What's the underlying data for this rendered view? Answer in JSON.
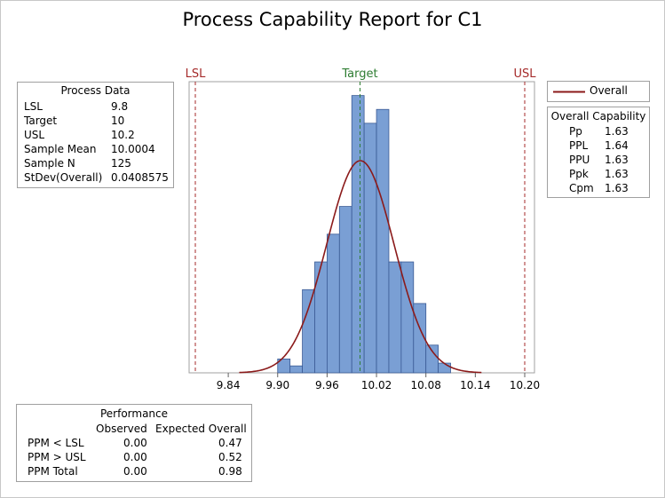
{
  "title": "Process Capability Report for C1",
  "colors": {
    "bar_fill": "#7a9fd4",
    "bar_stroke": "#3a5a94",
    "curve": "#8b1a1a",
    "spec_line": "#a52a2a",
    "target_line": "#2e7d32"
  },
  "chart_data": {
    "type": "bar",
    "title": "Process Capability Report for C1",
    "x_axis": {
      "range": [
        9.8,
        10.2
      ],
      "ticks": [
        9.84,
        9.9,
        9.96,
        10.02,
        10.08,
        10.14,
        10.2
      ],
      "tick_labels": [
        "9.84",
        "9.90",
        "9.96",
        "10.02",
        "10.08",
        "10.14",
        "10.20"
      ]
    },
    "y_axis": {
      "range": [
        0,
        21
      ],
      "ticks_shown": false
    },
    "bin_width": 0.015,
    "bins": [
      {
        "start": 9.9,
        "end": 9.915,
        "count": 1
      },
      {
        "start": 9.915,
        "end": 9.93,
        "count": 0.5
      },
      {
        "start": 9.93,
        "end": 9.945,
        "count": 6
      },
      {
        "start": 9.945,
        "end": 9.96,
        "count": 8
      },
      {
        "start": 9.96,
        "end": 9.975,
        "count": 10
      },
      {
        "start": 9.975,
        "end": 9.99,
        "count": 12
      },
      {
        "start": 9.99,
        "end": 10.005,
        "count": 20
      },
      {
        "start": 10.005,
        "end": 10.02,
        "count": 18
      },
      {
        "start": 10.02,
        "end": 10.035,
        "count": 19
      },
      {
        "start": 10.035,
        "end": 10.05,
        "count": 8
      },
      {
        "start": 10.05,
        "end": 10.065,
        "count": 8
      },
      {
        "start": 10.065,
        "end": 10.08,
        "count": 5
      },
      {
        "start": 10.08,
        "end": 10.095,
        "count": 2
      },
      {
        "start": 10.095,
        "end": 10.11,
        "count": 0.7
      }
    ],
    "normal_curve": {
      "label": "Overall",
      "mean": 10.0004,
      "stdev": 0.0408575,
      "peak_count": 15.3
    },
    "reference_lines": [
      {
        "label": "LSL",
        "value": 9.8,
        "kind": "spec"
      },
      {
        "label": "Target",
        "value": 10,
        "kind": "target"
      },
      {
        "label": "USL",
        "value": 10.2,
        "kind": "spec"
      }
    ]
  },
  "process_data": {
    "heading": "Process Data",
    "rows": [
      {
        "label": "LSL",
        "value": "9.8"
      },
      {
        "label": "Target",
        "value": "10"
      },
      {
        "label": "USL",
        "value": "10.2"
      },
      {
        "label": "Sample Mean",
        "value": "10.0004"
      },
      {
        "label": "Sample N",
        "value": "125"
      },
      {
        "label": "StDev(Overall)",
        "value": "0.0408575"
      }
    ]
  },
  "legend": {
    "overall_label": "Overall"
  },
  "overall_capability": {
    "heading": "Overall Capability",
    "rows": [
      {
        "label": "Pp",
        "value": "1.63"
      },
      {
        "label": "PPL",
        "value": "1.64"
      },
      {
        "label": "PPU",
        "value": "1.63"
      },
      {
        "label": "Ppk",
        "value": "1.63"
      },
      {
        "label": "Cpm",
        "value": "1.63"
      }
    ]
  },
  "performance": {
    "heading": "Performance",
    "col_observed": "Observed",
    "col_expected": "Expected Overall",
    "rows": [
      {
        "label": "PPM < LSL",
        "observed": "0.00",
        "expected": "0.47"
      },
      {
        "label": "PPM > USL",
        "observed": "0.00",
        "expected": "0.52"
      },
      {
        "label": "PPM Total",
        "observed": "0.00",
        "expected": "0.98"
      }
    ]
  }
}
